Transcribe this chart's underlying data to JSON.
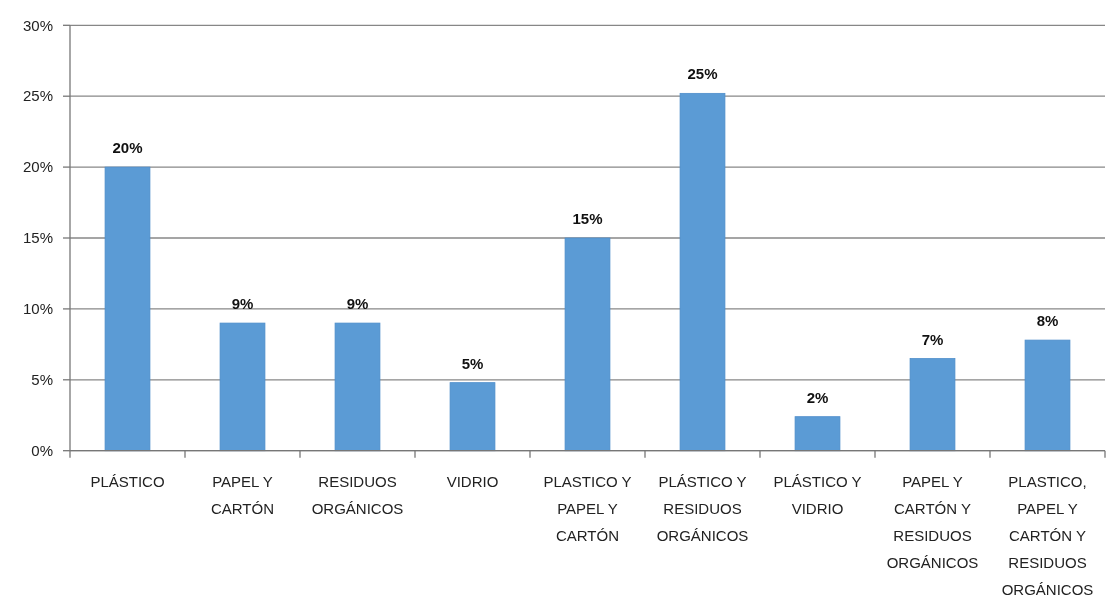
{
  "chart_data": {
    "type": "bar",
    "categories": [
      "PLÁSTICO",
      "PAPEL Y CARTÓN",
      "RESIDUOS ORGÁNICOS",
      "VIDRIO",
      "PLASTICO Y PAPEL Y CARTÓN",
      "PLÁSTICO Y RESIDUOS ORGÁNICOS",
      "PLÁSTICO Y VIDRIO",
      "PAPEL Y CARTÓN Y RESIDUOS ORGÁNICOS",
      "PLASTICO, PAPEL Y CARTÓN Y RESIDUOS ORGÁNICOS"
    ],
    "values": [
      20,
      9,
      9,
      4.8,
      15,
      25.2,
      2.4,
      6.5,
      7.8
    ],
    "value_labels": [
      "20%",
      "9%",
      "9%",
      "5%",
      "15%",
      "25%",
      "2%",
      "7%",
      "8%"
    ],
    "color": "#5b9bd5",
    "ylim": [
      0,
      30
    ],
    "yticks": [
      {
        "value": 0,
        "label": "0%"
      },
      {
        "value": 5,
        "label": "5%"
      },
      {
        "value": 10,
        "label": "10%"
      },
      {
        "value": 15,
        "label": "15%"
      },
      {
        "value": 20,
        "label": "20%"
      },
      {
        "value": 25,
        "label": "25%"
      },
      {
        "value": 30,
        "label": "30%"
      }
    ],
    "grid": "y"
  }
}
